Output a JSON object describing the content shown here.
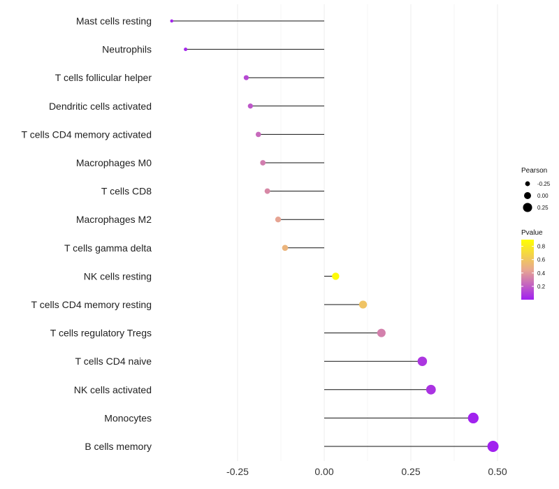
{
  "chart_data": {
    "type": "lollipop",
    "title": "",
    "xlabel": "",
    "ylabel": "",
    "xlim": [
      -0.45,
      0.52
    ],
    "xticks": [
      -0.25,
      0.0,
      0.25,
      0.5
    ],
    "xtick_labels": [
      "-0.25",
      "0.00",
      "0.25",
      "0.50"
    ],
    "grid": true,
    "categories": [
      "Mast cells resting",
      "Neutrophils",
      "T cells follicular helper",
      "Dendritic cells activated",
      "T cells CD4 memory activated",
      "Macrophages M0",
      "T cells CD8",
      "Macrophages M2",
      "T cells gamma delta",
      "NK cells resting",
      "T cells CD4 memory resting",
      "T cells regulatory  Tregs ",
      "T cells CD4 naive",
      "NK cells activated",
      "Monocytes",
      "B cells memory"
    ],
    "values": [
      -0.44,
      -0.4,
      -0.225,
      -0.213,
      -0.19,
      -0.177,
      -0.164,
      -0.133,
      -0.113,
      0.033,
      0.112,
      0.165,
      0.283,
      0.308,
      0.43,
      0.487
    ],
    "pvalues": [
      0.02,
      0.03,
      0.15,
      0.2,
      0.27,
      0.34,
      0.38,
      0.48,
      0.55,
      0.88,
      0.62,
      0.35,
      0.08,
      0.07,
      0.01,
      0.005
    ],
    "legend": {
      "size_title": "Pearson",
      "size_values": [
        -0.25,
        0.0,
        0.25
      ],
      "size_labels": [
        "-0.25",
        "0.00",
        "0.25"
      ],
      "color_title": "Pvalue",
      "color_ticks": [
        0.8,
        0.6,
        0.4,
        0.2
      ],
      "color_labels": [
        "0.8",
        "0.6",
        "0.4",
        "0.2"
      ],
      "color_low": "#a020f0",
      "color_mid": "#e8a890",
      "color_high": "#ffff00",
      "placement": "right"
    }
  }
}
